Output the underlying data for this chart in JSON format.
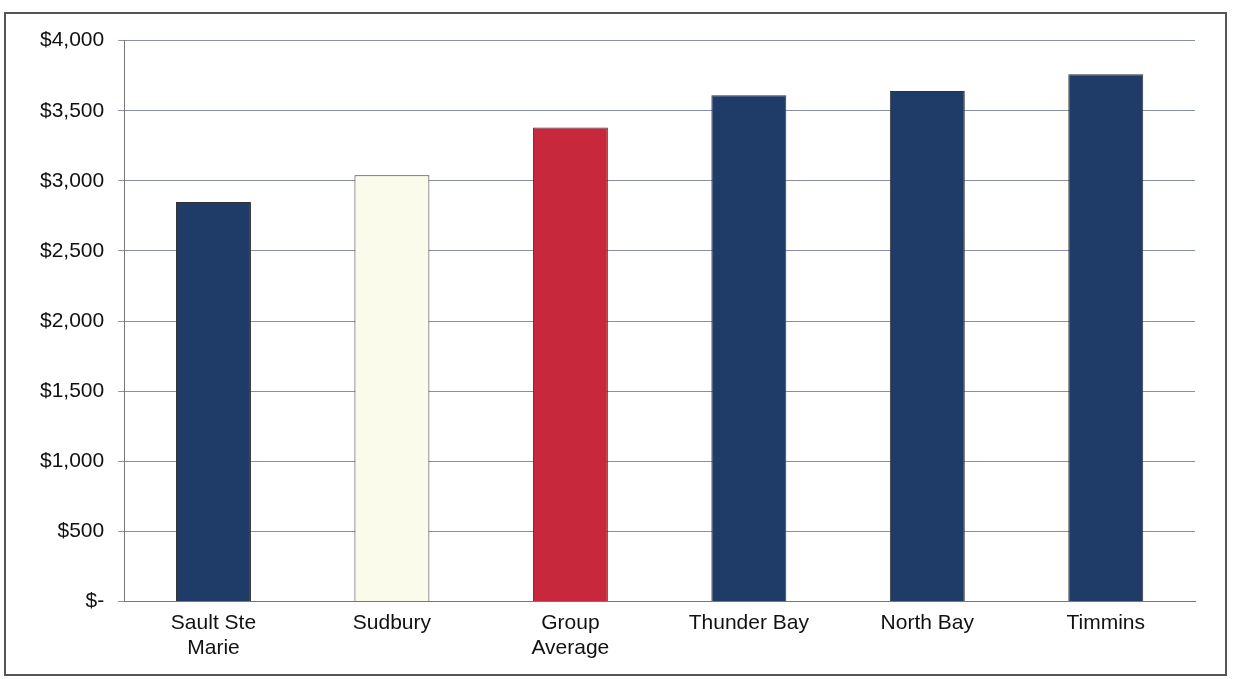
{
  "chart_data": {
    "type": "bar",
    "categories": [
      "Sault Ste Marie",
      "Sudbury",
      "Group Average",
      "Thunder Bay",
      "North Bay",
      "Timmins"
    ],
    "values": [
      2850,
      3040,
      3380,
      3610,
      3640,
      3760
    ],
    "colors": [
      "#1f3c68",
      "#fbfbec",
      "#c8283c",
      "#1f3c68",
      "#1f3c68",
      "#1f3c68"
    ],
    "ylim": [
      0,
      4000
    ],
    "yticks": [
      {
        "value": 0,
        "label": "$-"
      },
      {
        "value": 500,
        "label": "$500"
      },
      {
        "value": 1000,
        "label": "$1,000"
      },
      {
        "value": 1500,
        "label": "$1,500"
      },
      {
        "value": 2000,
        "label": "$2,000"
      },
      {
        "value": 2500,
        "label": "$2,500"
      },
      {
        "value": 3000,
        "label": "$3,000"
      },
      {
        "value": 3500,
        "label": "$3,500"
      },
      {
        "value": 4000,
        "label": "$4,000"
      }
    ],
    "grid": "y",
    "legend": false
  }
}
